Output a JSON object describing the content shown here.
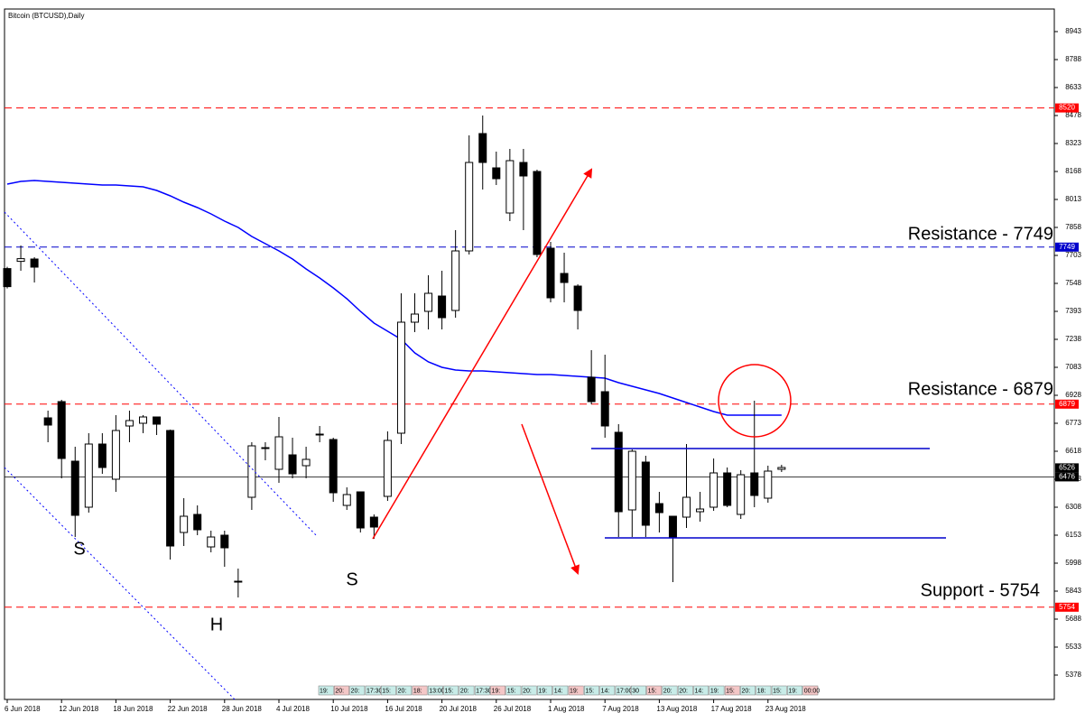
{
  "chart_data": {
    "type": "candlestick",
    "title": "Bitcoin (BTCUSD),Daily",
    "categories": [
      "6 Jun 2018",
      null,
      null,
      null,
      "12 Jun 2018",
      null,
      null,
      null,
      "18 Jun 2018",
      null,
      null,
      null,
      "22 Jun 2018",
      null,
      null,
      null,
      "28 Jun 2018",
      null,
      null,
      null,
      "4 Jul 2018",
      null,
      null,
      null,
      "10 Jul 2018",
      null,
      null,
      null,
      "16 Jul 2018",
      null,
      null,
      null,
      "20 Jul 2018",
      null,
      null,
      null,
      "26 Jul 2018",
      null,
      null,
      null,
      "1 Aug 2018",
      null,
      null,
      null,
      "7 Aug 2018",
      null,
      null,
      null,
      "13 Aug 2018",
      null,
      null,
      null,
      "17 Aug 2018",
      null,
      null,
      null,
      "23 Aug 2018",
      null
    ],
    "open": [
      7630,
      7670,
      7683,
      6803,
      6893,
      6563,
      6308,
      6658,
      6463,
      6758,
      6773,
      6808,
      6733,
      6168,
      6268,
      6088,
      6153,
      5893,
      6363,
      6633,
      6518,
      6598,
      6538,
      6708,
      6683,
      6318,
      6393,
      6253,
      6368,
      6718,
      7333,
      7393,
      7478,
      7398,
      7728,
      8378,
      8188,
      7938,
      8218,
      8168,
      7743,
      7603,
      7533,
      7028,
      6948,
      6723,
      6293,
      6558,
      6328,
      6258,
      6253,
      6283,
      6308,
      6498,
      6268,
      6498,
      6358,
      6518
    ],
    "high": [
      7640,
      7758,
      7693,
      6843,
      6903,
      6643,
      6718,
      6718,
      6818,
      6843,
      6818,
      6808,
      6738,
      6358,
      6318,
      6178,
      6178,
      5968,
      6668,
      6668,
      6808,
      6693,
      6643,
      6758,
      6693,
      6418,
      6393,
      6268,
      6728,
      7493,
      7493,
      7593,
      7618,
      7843,
      8368,
      8478,
      8278,
      8293,
      8293,
      8178,
      7778,
      7718,
      7543,
      7178,
      7153,
      6768,
      6628,
      6593,
      6393,
      6258,
      6658,
      6393,
      6578,
      6528,
      6513,
      6898,
      6538,
      6543
    ],
    "low": [
      7520,
      7618,
      7553,
      6668,
      6468,
      6143,
      6278,
      6493,
      6393,
      6668,
      6718,
      6708,
      6018,
      6093,
      6153,
      6058,
      5978,
      5808,
      6293,
      6568,
      6443,
      6468,
      6468,
      6668,
      6338,
      6293,
      6168,
      6133,
      6343,
      6658,
      7278,
      7293,
      7293,
      7358,
      7708,
      8068,
      8093,
      7893,
      7843,
      7693,
      7443,
      7443,
      7293,
      6878,
      6693,
      6143,
      6143,
      6143,
      6168,
      5893,
      6193,
      6228,
      6288,
      6308,
      6243,
      6308,
      6333,
      6503
    ],
    "close": [
      7530,
      7685,
      7638,
      6763,
      6578,
      6263,
      6658,
      6528,
      6733,
      6788,
      6808,
      6768,
      6093,
      6258,
      6183,
      6143,
      6083,
      5898,
      6648,
      6638,
      6698,
      6493,
      6573,
      6713,
      6388,
      6378,
      6193,
      6198,
      6678,
      7333,
      7378,
      7493,
      7358,
      7728,
      8218,
      8218,
      8128,
      8228,
      8143,
      7708,
      7468,
      7553,
      7398,
      6893,
      6758,
      6283,
      6618,
      6208,
      6278,
      6143,
      6363,
      6298,
      6498,
      6318,
      6488,
      6373,
      6508,
      6528
    ],
    "ma": {
      "color": "#0000ff",
      "values": [
        8098,
        8113,
        8118,
        8113,
        8108,
        8103,
        8098,
        8093,
        8093,
        8088,
        8083,
        8063,
        8033,
        7998,
        7968,
        7933,
        7893,
        7858,
        7808,
        7768,
        7728,
        7683,
        7628,
        7578,
        7523,
        7463,
        7393,
        7328,
        7283,
        7238,
        7163,
        7113,
        7083,
        7068,
        7063,
        7063,
        7058,
        7053,
        7048,
        7043,
        7043,
        7038,
        7033,
        7028,
        7023,
        6998,
        6978,
        6958,
        6938,
        6913,
        6888,
        6863,
        6838,
        6818,
        6818,
        6818,
        6818,
        6818
      ]
    },
    "ylim": [
      5243,
      9068
    ],
    "yticks": [
      8943,
      8788,
      8633,
      8478,
      8323,
      8168,
      8013,
      7858,
      7703,
      7548,
      7393,
      7238,
      7083,
      6928,
      6773,
      6618,
      6463,
      6308,
      6153,
      5998,
      5843,
      5688,
      5533,
      5378
    ],
    "levels": [
      {
        "value": 8520,
        "color": "#ff0000"
      },
      {
        "value": 7749,
        "color": "#0000cc"
      },
      {
        "value": 6879,
        "color": "#ff0000"
      },
      {
        "value": 5754,
        "color": "#ff0000"
      }
    ],
    "price_labels": [
      6526,
      6476
    ],
    "annotations": [
      "Resistance - 7749",
      "Resistance - 6879",
      "Support - 5754",
      "S",
      "H",
      "S"
    ],
    "session_strip": [
      "19:",
      "20:",
      "20:",
      "17:30",
      "15:",
      "20:",
      "18:",
      "13:00",
      "15:",
      "20:",
      "17:30",
      "19:",
      "15:",
      "20:",
      "19:",
      "14:",
      "19:",
      "15:",
      "14:",
      "17:00",
      "30",
      "15:",
      "20:",
      "20:",
      "14:",
      "19:",
      "15:",
      "20:",
      "18:",
      "15:",
      "19:",
      "00:00"
    ]
  }
}
